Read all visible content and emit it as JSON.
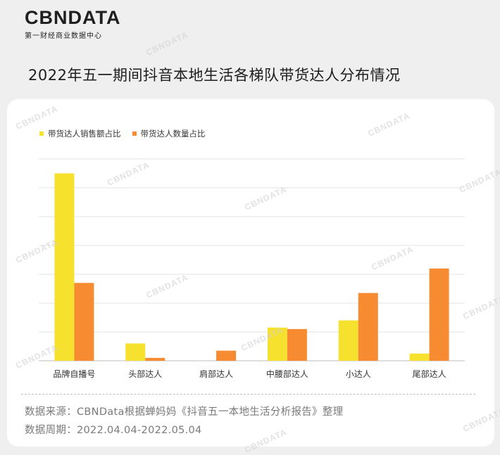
{
  "brand": {
    "logo_text": "CBNDATA",
    "logo_subtitle": "第一财经商业数据中心"
  },
  "title": "2022年五一期间抖音本地生活各梯队带货达人分布情况",
  "footer": {
    "source": "数据来源：CBNData根据蝉妈妈《抖音五一本地生活分析报告》整理",
    "period": "数据周期：2022.04.04-2022.05.04"
  },
  "colors": {
    "sales": "#f7e12f",
    "count": "#f78b32",
    "grid": "#e3e3e3",
    "axis": "#bcbcbc"
  },
  "chart_data": {
    "type": "bar",
    "categories": [
      "品牌自播号",
      "头部达人",
      "肩部达人",
      "中腰部达人",
      "小达人",
      "尾部达人"
    ],
    "series": [
      {
        "name": "带货达人销售额占比",
        "values": [
          0.65,
          0.06,
          0.0,
          0.115,
          0.14,
          0.025
        ]
      },
      {
        "name": "带货达人数量占比",
        "values": [
          0.27,
          0.01,
          0.035,
          0.11,
          0.235,
          0.32
        ]
      }
    ],
    "ylim": [
      0,
      0.7
    ],
    "grid": true,
    "y_tick_labels_shown": false,
    "legend_position": "top-left"
  }
}
